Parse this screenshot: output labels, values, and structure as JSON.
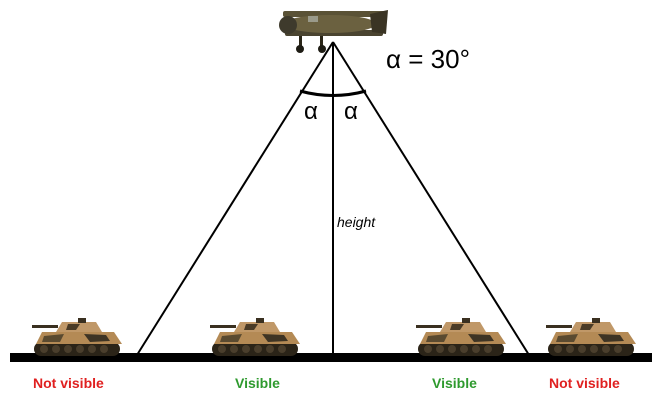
{
  "angle_label": "α = 30°",
  "half_angle_left": "α",
  "half_angle_right": "α",
  "height_label": "height",
  "tank_labels": [
    {
      "text": "Not visible",
      "color": "#e02020"
    },
    {
      "text": "Visible",
      "color": "#2e9a2e"
    },
    {
      "text": "Visible",
      "color": "#2e9a2e"
    },
    {
      "text": "Not visible",
      "color": "#e02020"
    }
  ]
}
